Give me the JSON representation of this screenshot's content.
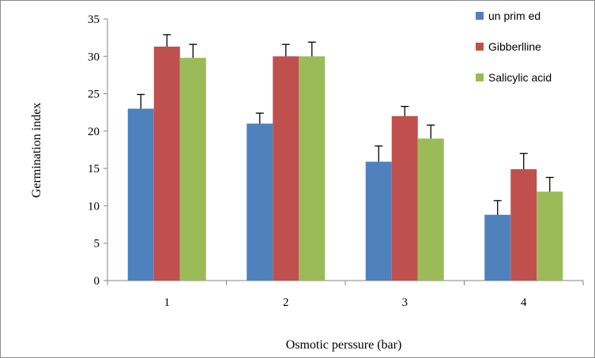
{
  "chart_data": {
    "type": "bar",
    "title": "",
    "xlabel": "Osmotic perssure (bar)",
    "ylabel": "Germination  index",
    "categories": [
      "1",
      "2",
      "3",
      "4"
    ],
    "ylim": [
      0,
      35
    ],
    "yticks": [
      "0",
      "5",
      "10",
      "15",
      "20",
      "25",
      "30",
      "35"
    ],
    "grid": false,
    "legend_position": "top-right",
    "series": [
      {
        "name": "un prim ed",
        "color": "#4f81bd",
        "values": [
          23,
          21,
          15.9,
          8.8
        ],
        "errors": [
          1.9,
          1.4,
          2.1,
          1.9
        ]
      },
      {
        "name": "Gibberlline",
        "color": "#c0504d",
        "values": [
          31.3,
          30,
          22,
          14.9
        ],
        "errors": [
          1.6,
          1.6,
          1.3,
          2.1
        ]
      },
      {
        "name": "Salicylic acid",
        "color": "#9bbb59",
        "values": [
          29.8,
          30,
          19,
          11.9
        ],
        "errors": [
          1.8,
          1.9,
          1.8,
          1.9
        ]
      }
    ]
  }
}
